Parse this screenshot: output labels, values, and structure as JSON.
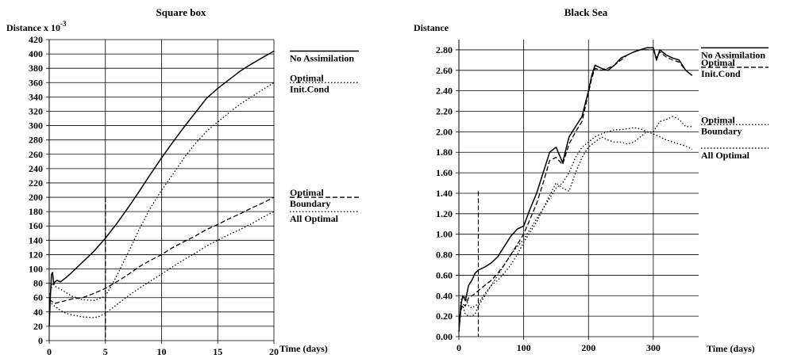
{
  "chart_data": [
    {
      "type": "line",
      "title": "Square box",
      "ylabel": "Distance x 10",
      "ylabel_exponent": "-3",
      "xlabel": "Time (days)",
      "xlim": [
        0,
        20
      ],
      "ylim": [
        0,
        420
      ],
      "xticks": [
        0,
        5,
        10,
        15,
        20
      ],
      "yticks": [
        0,
        20,
        40,
        60,
        80,
        100,
        120,
        140,
        160,
        180,
        200,
        220,
        240,
        260,
        280,
        300,
        320,
        340,
        360,
        380,
        400,
        420
      ],
      "grid": true,
      "vline": {
        "x": 5,
        "y": [
          0,
          200
        ],
        "dash": "dashed"
      },
      "series": [
        {
          "name": "No Assimilation",
          "dash": "solid",
          "x": [
            0,
            0.1,
            0.2,
            0.3,
            0.4,
            0.5,
            0.7,
            1.0,
            1.5,
            2,
            3,
            4,
            5,
            6,
            7,
            8,
            9,
            10,
            11,
            12,
            13,
            14,
            15,
            16,
            17,
            18,
            19,
            20
          ],
          "y": [
            20,
            60,
            92,
            95,
            78,
            82,
            84,
            82,
            88,
            95,
            110,
            125,
            143,
            163,
            185,
            208,
            232,
            255,
            277,
            298,
            318,
            338,
            352,
            364,
            376,
            386,
            395,
            404
          ]
        },
        {
          "name": "Optimal Init.Cond",
          "legend_lines": [
            "Optimal",
            "Init.Cond"
          ],
          "dash": "dotted",
          "x": [
            0,
            0.3,
            0.6,
            1,
            2,
            3,
            4,
            5,
            6,
            7,
            8,
            9,
            10,
            11,
            12,
            13,
            14,
            15,
            16,
            17,
            18,
            19,
            20
          ],
          "y": [
            60,
            80,
            75,
            72,
            62,
            57,
            56,
            62,
            90,
            122,
            155,
            185,
            210,
            232,
            255,
            275,
            292,
            305,
            318,
            330,
            340,
            350,
            360
          ]
        },
        {
          "name": "Optimal Boundary",
          "legend_lines": [
            "Optimal",
            "Boundary"
          ],
          "dash": "dashed",
          "x": [
            0,
            0.2,
            0.5,
            1,
            2,
            3,
            4,
            5,
            6,
            7,
            8,
            9,
            10,
            11,
            12,
            13,
            14,
            15,
            16,
            17,
            18,
            19,
            20
          ],
          "y": [
            58,
            55,
            52,
            54,
            58,
            60,
            66,
            73,
            82,
            92,
            103,
            112,
            120,
            130,
            138,
            146,
            155,
            162,
            170,
            177,
            185,
            192,
            200
          ]
        },
        {
          "name": "All Optimal",
          "dash": "dotted",
          "x": [
            0,
            0.2,
            0.5,
            1,
            1.5,
            2,
            3,
            4,
            4.5,
            5,
            6,
            7,
            8,
            9,
            10,
            11,
            12,
            13,
            14,
            15,
            16,
            17,
            18,
            19,
            20
          ],
          "y": [
            55,
            52,
            48,
            42,
            38,
            36,
            33,
            32,
            34,
            38,
            50,
            62,
            73,
            83,
            93,
            103,
            113,
            122,
            132,
            140,
            148,
            155,
            163,
            172,
            180
          ]
        }
      ],
      "legend_placement": "right"
    },
    {
      "type": "line",
      "title": "Black Sea",
      "ylabel": "Distance",
      "xlabel": "Time (days)",
      "xlim": [
        0,
        370
      ],
      "ylim": [
        0,
        2.9
      ],
      "xticks": [
        0,
        100,
        200,
        300
      ],
      "yticks": [
        0.0,
        0.2,
        0.4,
        0.6,
        0.8,
        1.0,
        1.2,
        1.4,
        1.6,
        1.8,
        2.0,
        2.2,
        2.4,
        2.6,
        2.8
      ],
      "ytick_labels": [
        "0.00",
        "0.20",
        "0.40",
        "0.60",
        "0.80",
        "1.00",
        "1.20",
        "1.40",
        "1.60",
        "1.80",
        "2.00",
        "2.20",
        "2.40",
        "2.60",
        "2.80"
      ],
      "grid": true,
      "vline": {
        "x": 30,
        "y": [
          0,
          1.42
        ],
        "dash": "dashed"
      },
      "series": [
        {
          "name": "No Assimilation",
          "dash": "solid",
          "x": [
            0,
            3,
            6,
            10,
            15,
            20,
            25,
            30,
            40,
            50,
            60,
            70,
            80,
            90,
            100,
            110,
            120,
            130,
            140,
            150,
            160,
            170,
            180,
            190,
            200,
            205,
            210,
            220,
            230,
            240,
            250,
            260,
            270,
            280,
            290,
            300,
            305,
            310,
            320,
            330,
            340,
            350,
            360
          ],
          "y": [
            0.05,
            0.3,
            0.4,
            0.35,
            0.5,
            0.55,
            0.62,
            0.65,
            0.68,
            0.72,
            0.78,
            0.88,
            0.98,
            1.05,
            1.08,
            1.25,
            1.4,
            1.6,
            1.8,
            1.85,
            1.7,
            1.95,
            2.05,
            2.15,
            2.4,
            2.55,
            2.65,
            2.62,
            2.6,
            2.65,
            2.72,
            2.75,
            2.78,
            2.8,
            2.82,
            2.82,
            2.7,
            2.8,
            2.75,
            2.72,
            2.7,
            2.6,
            2.55
          ]
        },
        {
          "name": "Optimal Init.Cond",
          "legend_lines": [
            "Optimal",
            "Init.Cond"
          ],
          "dash": "dashed",
          "x": [
            0,
            3,
            6,
            10,
            15,
            20,
            25,
            30,
            40,
            50,
            60,
            70,
            80,
            90,
            100,
            110,
            120,
            130,
            140,
            150,
            160,
            170,
            180,
            190,
            200,
            205,
            210,
            220,
            230,
            240,
            250,
            260,
            270,
            280,
            290,
            300,
            305,
            310,
            320,
            330,
            340,
            350,
            360
          ],
          "y": [
            0.05,
            0.25,
            0.32,
            0.3,
            0.38,
            0.4,
            0.42,
            0.45,
            0.5,
            0.55,
            0.62,
            0.7,
            0.8,
            0.9,
            1.0,
            1.15,
            1.3,
            1.5,
            1.72,
            1.75,
            1.68,
            1.88,
            2.0,
            2.1,
            2.38,
            2.52,
            2.62,
            2.6,
            2.62,
            2.65,
            2.7,
            2.75,
            2.78,
            2.8,
            2.8,
            2.8,
            2.72,
            2.78,
            2.73,
            2.7,
            2.68,
            2.6,
            2.55
          ]
        },
        {
          "name": "Optimal Boundary",
          "legend_lines": [
            "Optimal",
            "Boundary"
          ],
          "dash": "dotted",
          "x": [
            0,
            3,
            6,
            10,
            15,
            20,
            25,
            30,
            40,
            50,
            60,
            70,
            80,
            90,
            100,
            110,
            120,
            130,
            140,
            150,
            160,
            170,
            180,
            190,
            200,
            210,
            220,
            230,
            240,
            250,
            260,
            270,
            280,
            290,
            300,
            310,
            320,
            330,
            340,
            350,
            360
          ],
          "y": [
            0.05,
            0.3,
            0.3,
            0.22,
            0.2,
            0.2,
            0.22,
            0.3,
            0.4,
            0.5,
            0.6,
            0.7,
            0.8,
            0.88,
            0.95,
            1.05,
            1.15,
            1.25,
            1.35,
            1.45,
            1.5,
            1.6,
            1.75,
            1.85,
            1.9,
            1.95,
            1.98,
            2.0,
            2.02,
            2.02,
            2.03,
            2.04,
            2.03,
            2.0,
            2.0,
            2.1,
            2.12,
            2.15,
            2.12,
            2.05,
            2.05
          ]
        },
        {
          "name": "All Optimal",
          "dash": "dotted",
          "x": [
            0,
            3,
            6,
            10,
            15,
            20,
            25,
            30,
            40,
            50,
            60,
            70,
            80,
            90,
            100,
            110,
            120,
            130,
            140,
            150,
            160,
            170,
            180,
            190,
            200,
            210,
            220,
            230,
            240,
            250,
            260,
            270,
            280,
            290,
            300,
            310,
            320,
            330,
            340,
            350,
            360
          ],
          "y": [
            0.05,
            0.35,
            0.4,
            0.38,
            0.3,
            0.28,
            0.3,
            0.32,
            0.42,
            0.5,
            0.55,
            0.62,
            0.7,
            0.8,
            0.92,
            1.02,
            1.12,
            1.25,
            1.38,
            1.5,
            1.45,
            1.42,
            1.6,
            1.75,
            1.85,
            1.9,
            1.95,
            1.92,
            1.9,
            1.9,
            1.88,
            1.9,
            1.95,
            2.0,
            1.98,
            1.95,
            1.92,
            1.9,
            1.88,
            1.86,
            1.83
          ]
        }
      ],
      "legend_placement": "right"
    }
  ]
}
